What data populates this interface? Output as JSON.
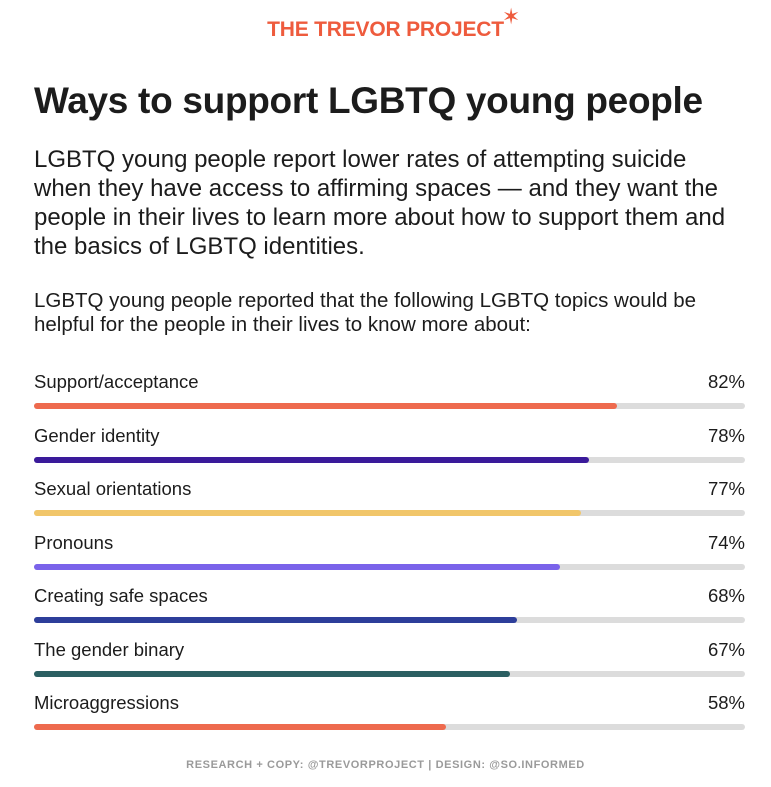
{
  "brand": {
    "name": "THE TREVOR PROJECT",
    "mark": "✶"
  },
  "title": "Ways to support LGBTQ young people",
  "intro": "LGBTQ young people report lower rates of attempting suicide when they have access to affirming spaces — and they want the people in their lives to learn more about how to support them and the basics of LGBTQ identities.",
  "lead": "LGBTQ young people reported that the following LGBTQ topics would be helpful for the people in their lives to know more about:",
  "chart_data": {
    "type": "bar",
    "orientation": "horizontal",
    "xlim": [
      0,
      100
    ],
    "unit": "%",
    "categories": [
      "Support/acceptance",
      "Gender identity",
      "Sexual orientations",
      "Pronouns",
      "Creating safe spaces",
      "The gender binary",
      "Microaggressions"
    ],
    "values": [
      82,
      78,
      77,
      74,
      68,
      67,
      58
    ],
    "value_labels": [
      "82%",
      "78%",
      "77%",
      "74%",
      "68%",
      "67%",
      "58%"
    ],
    "colors": [
      "#ee6a4e",
      "#3a1a9a",
      "#f1c66a",
      "#7a63ea",
      "#2d3e9a",
      "#2b5f62",
      "#ee6a4e"
    ],
    "track_color": "#dcdcdc"
  },
  "footer": "RESEARCH + COPY: @TREVORPROJECT | DESIGN: @SO.INFORMED"
}
